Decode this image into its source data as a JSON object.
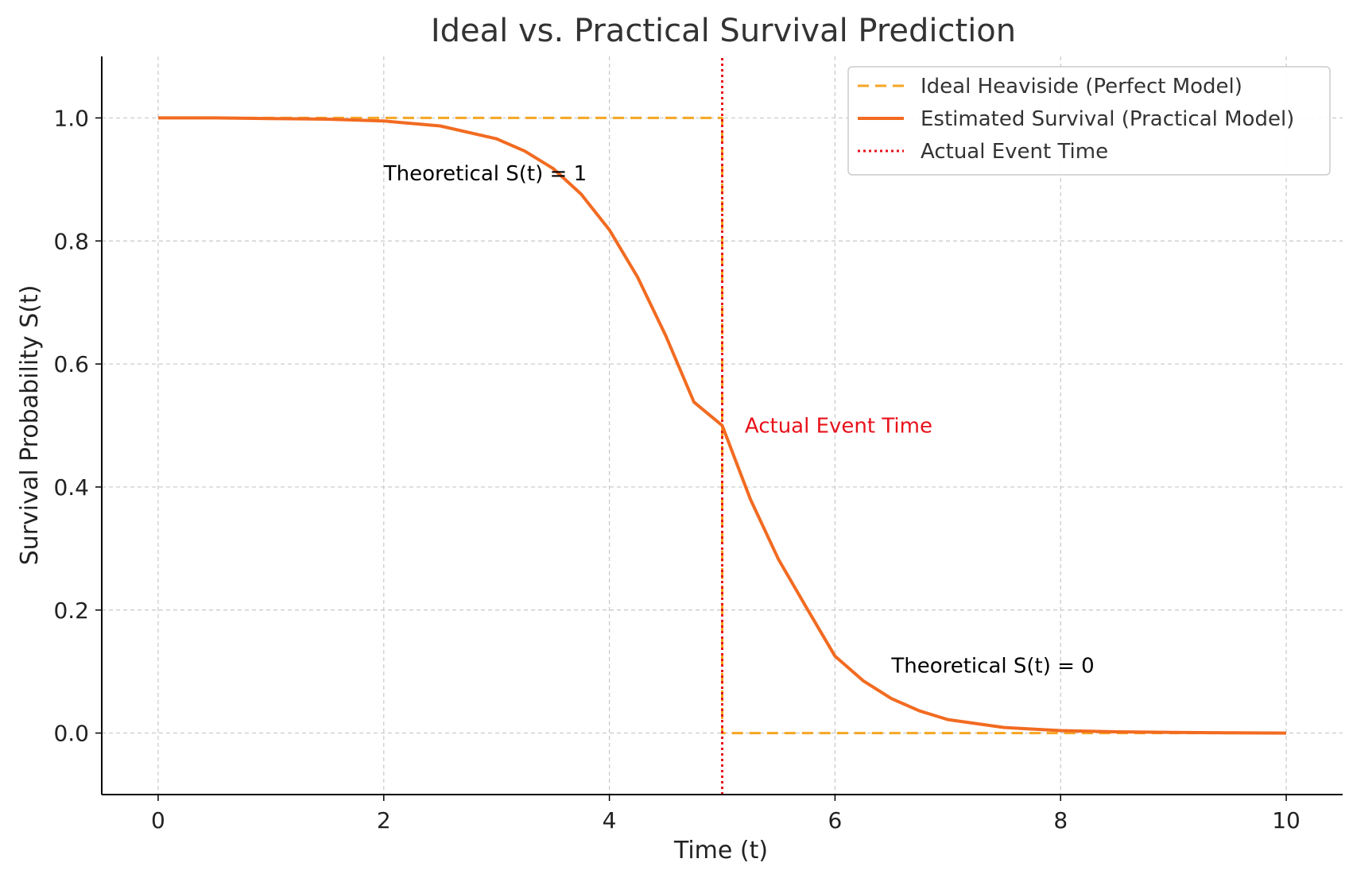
{
  "chart_data": {
    "type": "line",
    "title": "Ideal vs. Practical Survival Prediction",
    "xlabel": "Time (t)",
    "ylabel": "Survival Probability S(t)",
    "xlim": [
      -0.5,
      10.5
    ],
    "ylim": [
      -0.1,
      1.1
    ],
    "x_ticks": [
      0,
      2,
      4,
      6,
      8,
      10
    ],
    "x_tick_labels": [
      "0",
      "2",
      "4",
      "6",
      "8",
      "10"
    ],
    "y_ticks": [
      0.0,
      0.2,
      0.4,
      0.6,
      0.8,
      1.0
    ],
    "y_tick_labels": [
      "0.0",
      "0.2",
      "0.4",
      "0.6",
      "0.8",
      "1.0"
    ],
    "grid": true,
    "legend_position": "top-right",
    "series": [
      {
        "name": "Ideal Heaviside (Perfect Model)",
        "style": "dashed",
        "color": "#f5a623",
        "x": [
          0,
          5,
          5,
          10
        ],
        "y": [
          1,
          1,
          0,
          0
        ]
      },
      {
        "name": "Estimated Survival (Practical Model)",
        "style": "solid",
        "color": "#f26b21",
        "x": [
          0,
          0.5,
          1,
          1.5,
          2,
          2.5,
          3,
          3.25,
          3.5,
          3.75,
          4,
          4.25,
          4.5,
          4.75,
          5,
          5.25,
          5.5,
          5.75,
          6,
          6.25,
          6.5,
          6.75,
          7,
          7.5,
          8,
          8.5,
          9,
          9.5,
          10
        ],
        "y": [
          1.0,
          1.0,
          0.999,
          0.998,
          0.995,
          0.987,
          0.966,
          0.946,
          0.918,
          0.876,
          0.818,
          0.741,
          0.646,
          0.538,
          0.5,
          0.38,
          0.282,
          0.203,
          0.125,
          0.085,
          0.056,
          0.036,
          0.022,
          0.009,
          0.004,
          0.002,
          0.001,
          0.0005,
          0.0
        ]
      },
      {
        "name": "Actual Event Time",
        "style": "dotted",
        "color": "#e8101a",
        "x": [
          5,
          5
        ],
        "y": [
          -0.1,
          1.1
        ]
      }
    ],
    "annotations": [
      {
        "text": "Theoretical S(t) = 1",
        "x": 2.0,
        "y": 0.91,
        "color": "#000000"
      },
      {
        "text": "Actual Event Time",
        "x": 5.2,
        "y": 0.5,
        "color": "#e8101a"
      },
      {
        "text": "Theoretical S(t) = 0",
        "x": 6.5,
        "y": 0.11,
        "color": "#000000"
      }
    ]
  }
}
